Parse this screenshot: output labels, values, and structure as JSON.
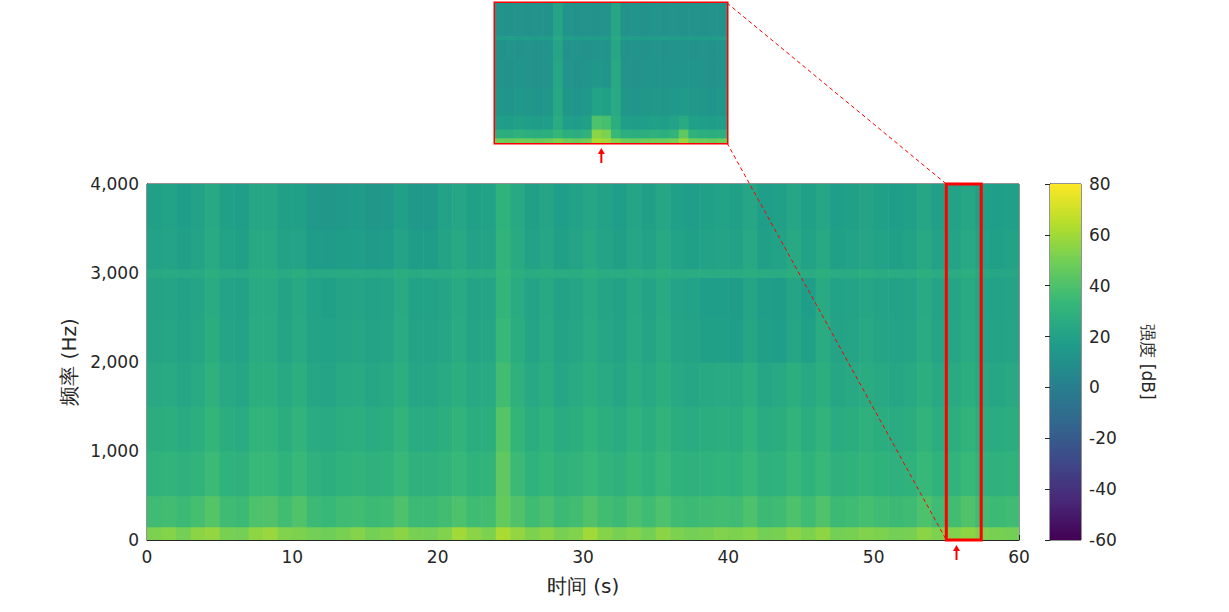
{
  "chart_data": [
    {
      "type": "heatmap",
      "xlabel": "时间 (s)",
      "ylabel": "频率 (Hz)",
      "xlim": [
        0,
        60
      ],
      "xticks": [
        0,
        10,
        20,
        30,
        40,
        50,
        60
      ],
      "ylim": [
        0,
        4000
      ],
      "yticks": [
        0,
        1000,
        2000,
        3000,
        4000
      ],
      "grid": false,
      "x_edges": [
        0,
        1,
        2,
        3,
        4,
        5,
        6,
        7,
        8,
        9,
        10,
        11,
        12,
        13,
        14,
        15,
        16,
        17,
        18,
        19,
        20,
        21,
        22,
        23,
        24,
        25,
        26,
        27,
        28,
        29,
        30,
        31,
        32,
        33,
        34,
        35,
        36,
        37,
        38,
        39,
        40,
        41,
        42,
        43,
        44,
        45,
        46,
        47,
        48,
        49,
        50,
        51,
        52,
        53,
        54,
        55,
        56,
        57,
        58,
        59,
        60
      ],
      "y_edges": [
        0,
        150,
        500,
        1000,
        1500,
        2000,
        2500,
        2950,
        3050,
        3500,
        4000
      ],
      "cells": [
        [
          52,
          54,
          50,
          55,
          57,
          51,
          50,
          56,
          58,
          53,
          52,
          50,
          49,
          51,
          54,
          50,
          52,
          55,
          51,
          50,
          53,
          60,
          55,
          52,
          62,
          57,
          52,
          55,
          51,
          53,
          60,
          54,
          51,
          53,
          50,
          55,
          52,
          50,
          51,
          53,
          52,
          54,
          50,
          51,
          55,
          52,
          56,
          50,
          51,
          53,
          52,
          50,
          51,
          55,
          52,
          53,
          56,
          52,
          51,
          50
        ],
        [
          36,
          37,
          35,
          38,
          42,
          36,
          35,
          40,
          41,
          37,
          41,
          35,
          34,
          36,
          37,
          35,
          36,
          40,
          35,
          35,
          37,
          40,
          36,
          37,
          46,
          41,
          36,
          39,
          35,
          37,
          41,
          37,
          35,
          39,
          36,
          40,
          36,
          35,
          36,
          37,
          36,
          40,
          35,
          36,
          40,
          36,
          41,
          35,
          36,
          38,
          36,
          35,
          36,
          40,
          36,
          37,
          41,
          36,
          35,
          36
        ],
        [
          30,
          31,
          29,
          31,
          35,
          30,
          29,
          34,
          34,
          30,
          34,
          29,
          28,
          30,
          31,
          29,
          30,
          34,
          29,
          29,
          31,
          34,
          30,
          31,
          45,
          35,
          30,
          33,
          29,
          31,
          34,
          31,
          29,
          33,
          30,
          34,
          30,
          29,
          30,
          31,
          30,
          34,
          29,
          30,
          34,
          30,
          34,
          29,
          30,
          32,
          30,
          29,
          30,
          34,
          30,
          31,
          34,
          30,
          29,
          30
        ],
        [
          27,
          28,
          26,
          28,
          32,
          27,
          26,
          31,
          31,
          27,
          31,
          26,
          25,
          27,
          28,
          26,
          27,
          31,
          26,
          26,
          28,
          31,
          27,
          28,
          42,
          32,
          27,
          30,
          26,
          28,
          31,
          28,
          26,
          30,
          27,
          31,
          27,
          26,
          27,
          28,
          27,
          31,
          26,
          27,
          31,
          27,
          31,
          26,
          27,
          29,
          27,
          26,
          27,
          31,
          27,
          28,
          31,
          27,
          26,
          27
        ],
        [
          24,
          25,
          23,
          25,
          29,
          24,
          23,
          28,
          28,
          24,
          28,
          23,
          22,
          24,
          25,
          23,
          24,
          28,
          23,
          23,
          25,
          28,
          24,
          25,
          37,
          29,
          24,
          27,
          23,
          25,
          28,
          25,
          23,
          27,
          24,
          28,
          24,
          23,
          24,
          25,
          24,
          28,
          23,
          24,
          28,
          24,
          28,
          23,
          24,
          26,
          24,
          23,
          24,
          28,
          24,
          25,
          28,
          24,
          23,
          24
        ],
        [
          22,
          23,
          21,
          23,
          27,
          22,
          21,
          26,
          26,
          22,
          25,
          21,
          20,
          22,
          23,
          21,
          22,
          26,
          21,
          21,
          23,
          26,
          22,
          23,
          34,
          27,
          22,
          25,
          21,
          23,
          26,
          23,
          21,
          25,
          22,
          26,
          22,
          21,
          19,
          19,
          18,
          23,
          19,
          18,
          23,
          19,
          26,
          21,
          22,
          24,
          22,
          21,
          22,
          26,
          22,
          23,
          26,
          22,
          21,
          22
        ],
        [
          21,
          22,
          20,
          22,
          26,
          21,
          20,
          25,
          25,
          21,
          24,
          20,
          19,
          21,
          22,
          20,
          21,
          25,
          20,
          20,
          22,
          25,
          21,
          22,
          32,
          26,
          21,
          24,
          20,
          22,
          25,
          22,
          20,
          24,
          21,
          25,
          21,
          20,
          18,
          18,
          17,
          22,
          18,
          17,
          22,
          18,
          25,
          20,
          21,
          23,
          21,
          20,
          21,
          25,
          21,
          22,
          25,
          21,
          20,
          21
        ],
        [
          24,
          25,
          24,
          25,
          28,
          25,
          24,
          27,
          27,
          25,
          27,
          24,
          24,
          25,
          25,
          24,
          25,
          27,
          25,
          26,
          26,
          28,
          26,
          26,
          33,
          28,
          26,
          27,
          26,
          26,
          28,
          26,
          26,
          27,
          26,
          28,
          26,
          26,
          26,
          26,
          26,
          27,
          26,
          26,
          28,
          26,
          28,
          26,
          26,
          27,
          26,
          26,
          26,
          28,
          26,
          26,
          28,
          24,
          23,
          23
        ],
        [
          20,
          21,
          19,
          21,
          25,
          20,
          19,
          24,
          24,
          20,
          21,
          17,
          16,
          17,
          18,
          16,
          17,
          21,
          17,
          17,
          21,
          24,
          20,
          21,
          31,
          25,
          20,
          23,
          19,
          21,
          24,
          21,
          19,
          23,
          20,
          24,
          20,
          19,
          20,
          21,
          20,
          24,
          19,
          20,
          24,
          20,
          24,
          19,
          20,
          22,
          20,
          19,
          20,
          24,
          20,
          21,
          24,
          20,
          19,
          20
        ],
        [
          19,
          20,
          18,
          20,
          24,
          19,
          18,
          23,
          23,
          19,
          19,
          15,
          14,
          15,
          16,
          14,
          15,
          19,
          15,
          15,
          20,
          23,
          19,
          20,
          30,
          24,
          19,
          22,
          18,
          20,
          23,
          20,
          18,
          22,
          19,
          23,
          19,
          18,
          19,
          20,
          19,
          23,
          18,
          19,
          23,
          19,
          23,
          18,
          19,
          21,
          19,
          18,
          19,
          23,
          19,
          20,
          23,
          19,
          18,
          19
        ]
      ],
      "colorbar": {
        "label": "强度 [dB]",
        "range": [
          -60,
          80
        ],
        "ticks": [
          -60,
          -40,
          -20,
          0,
          20,
          40,
          60,
          80
        ]
      },
      "highlight": [
        55,
        57.4
      ],
      "arrow_x": 55.7
    },
    {
      "type": "heatmap",
      "tick_labels": false,
      "xlim": [
        55,
        57.4
      ],
      "ylim": [
        0,
        4000
      ],
      "x_edges": [
        55,
        55.1,
        55.2,
        55.3,
        55.4,
        55.5,
        55.6,
        55.7,
        55.8,
        55.9,
        56,
        56.1,
        56.2,
        56.3,
        56.4,
        56.5,
        56.6,
        56.7,
        56.8,
        56.9,
        57,
        57.1,
        57.2,
        57.3,
        57.4
      ],
      "y_edges": [
        0,
        150,
        400,
        800,
        1600,
        2400,
        2950,
        3050,
        4000
      ],
      "cells": [
        [
          48,
          47,
          49,
          48,
          47,
          48,
          52,
          48,
          47,
          49,
          62,
          60,
          53,
          48,
          47,
          48,
          49,
          48,
          50,
          58,
          49,
          48,
          47,
          48
        ],
        [
          28,
          27,
          29,
          28,
          27,
          28,
          33,
          28,
          27,
          29,
          55,
          52,
          34,
          28,
          27,
          28,
          29,
          28,
          31,
          45,
          29,
          28,
          27,
          28
        ],
        [
          18,
          17,
          19,
          18,
          17,
          18,
          26,
          18,
          17,
          19,
          40,
          38,
          27,
          18,
          17,
          18,
          19,
          18,
          20,
          25,
          19,
          18,
          17,
          18
        ],
        [
          14,
          13,
          15,
          14,
          13,
          14,
          24,
          14,
          13,
          15,
          20,
          19,
          25,
          14,
          13,
          14,
          15,
          14,
          15,
          16,
          15,
          14,
          13,
          14
        ],
        [
          12,
          11,
          13,
          12,
          11,
          12,
          23,
          12,
          11,
          13,
          14,
          13,
          24,
          12,
          11,
          12,
          13,
          12,
          12,
          13,
          13,
          12,
          11,
          12
        ],
        [
          11,
          12,
          11,
          12,
          11,
          12,
          22,
          11,
          12,
          11,
          12,
          12,
          23,
          11,
          12,
          11,
          12,
          11,
          12,
          12,
          11,
          12,
          11,
          12
        ],
        [
          17,
          18,
          17,
          18,
          17,
          18,
          24,
          18,
          17,
          18,
          18,
          17,
          25,
          18,
          17,
          18,
          17,
          18,
          17,
          18,
          17,
          18,
          17,
          18
        ],
        [
          12,
          11,
          12,
          11,
          12,
          11,
          22,
          12,
          11,
          12,
          11,
          12,
          23,
          11,
          12,
          11,
          12,
          11,
          12,
          11,
          12,
          11,
          12,
          11
        ]
      ],
      "arrow_x": 56.1
    }
  ]
}
